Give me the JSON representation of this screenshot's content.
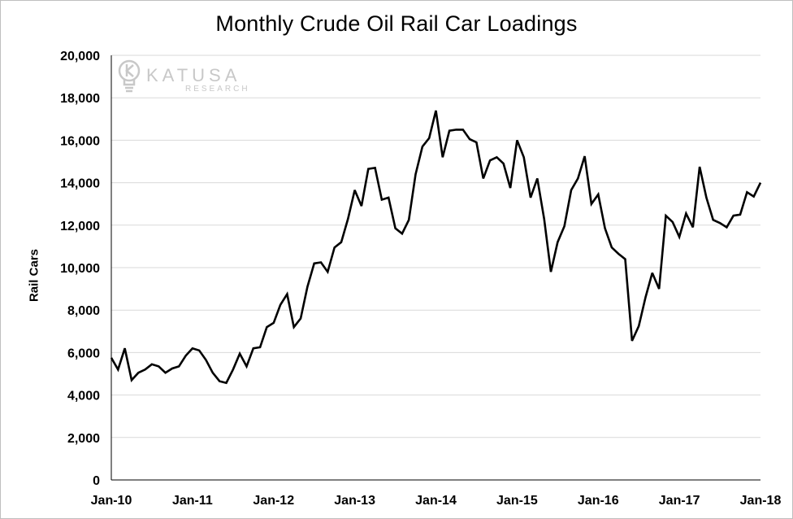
{
  "colors": {
    "line": "#000000",
    "grid": "#d9d9d9",
    "axis": "#000000",
    "logo": "#c8c8c8"
  },
  "logo": {
    "icon": "lightbulb-k-icon",
    "name": "KATUSA",
    "sub": "RESEARCH"
  },
  "chart_data": {
    "type": "line",
    "title": "Monthly Crude Oil Rail Car Loadings",
    "xlabel": "",
    "ylabel": "Rail Cars",
    "ylim": [
      0,
      20000
    ],
    "yticks": [
      0,
      2000,
      4000,
      6000,
      8000,
      10000,
      12000,
      14000,
      16000,
      18000,
      20000
    ],
    "ytick_labels": [
      "0",
      "2,000",
      "4,000",
      "6,000",
      "8,000",
      "10,000",
      "12,000",
      "14,000",
      "16,000",
      "18,000",
      "20,000"
    ],
    "xtick_labels": [
      "Jan-10",
      "Jan-11",
      "Jan-12",
      "Jan-13",
      "Jan-14",
      "Jan-15",
      "Jan-16",
      "Jan-17",
      "Jan-18"
    ],
    "grid": true,
    "legend": "none",
    "x_start": "Jan-10",
    "x_end": "Jan-18",
    "series": [
      {
        "values": [
          5750,
          5200,
          6200,
          4700,
          5050,
          5200,
          5450,
          5350,
          5050,
          5250,
          5350,
          5850,
          6200,
          6100,
          5650,
          5050,
          4650,
          4570,
          5200,
          5950,
          5350,
          6200,
          6250,
          7200,
          7400,
          8250,
          8750,
          7200,
          7600,
          9100,
          10200,
          10250,
          9800,
          10950,
          11200,
          12300,
          13650,
          12900,
          14650,
          14700,
          13200,
          13300,
          11850,
          11600,
          12250,
          14400,
          15700,
          16100,
          17400,
          15200,
          16450,
          16500,
          16500,
          16050,
          15900,
          14200,
          15050,
          15200,
          14900,
          13750,
          16000,
          15200,
          13300,
          14200,
          12300,
          9800,
          11200,
          11950,
          13650,
          14200,
          15250,
          13000,
          13450,
          11850,
          10950,
          10650,
          10400,
          6550,
          7250,
          8600,
          9750,
          9000,
          12450,
          12150,
          11450,
          12550,
          11900,
          14750,
          13300,
          12250,
          12100,
          11900,
          12450,
          12500,
          13550,
          13350,
          14000
        ]
      }
    ]
  }
}
